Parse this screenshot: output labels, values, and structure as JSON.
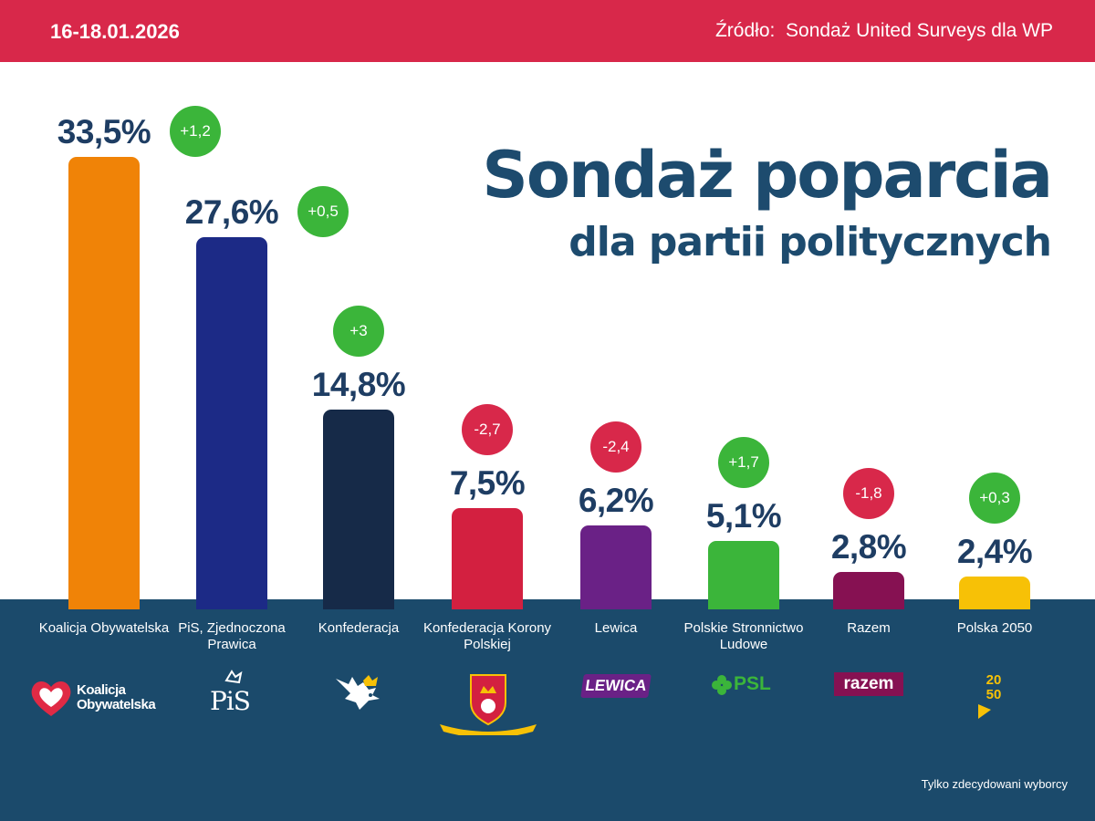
{
  "header": {
    "date": "16-18.01.2026",
    "source": "Źródło:  Sondaż United Surveys dla WP"
  },
  "title": {
    "main": "Sondaż poparcia",
    "sub": "dla partii politycznych"
  },
  "footnote": "Tylko zdecydowani wyborcy",
  "colors": {
    "header": "#d8284a",
    "title": "#1d4b6e",
    "bottom": "#1b4a6b",
    "value_text": "#1e3d63",
    "increase": "#3bb53a",
    "decrease": "#d8284a"
  },
  "logos": {
    "ko": "Koalicja\nObywatelska",
    "pis": "PiS",
    "lewica": "LEWICA",
    "psl": "PSL",
    "razem": "razem",
    "pl2050": "20 50"
  },
  "chart_data": {
    "type": "bar",
    "categories": [
      "Koalicja Obywatelska",
      "PiS, Zjednoczona Prawica",
      "Konfederacja",
      "Konfederacja Korony Polskiej",
      "Lewica",
      "Polskie Stronnictwo Ludowe",
      "Razem",
      "Polska 2050"
    ],
    "values": [
      33.5,
      27.6,
      14.8,
      7.5,
      6.2,
      5.1,
      2.8,
      2.4
    ],
    "value_labels": [
      "33,5%",
      "27,6%",
      "14,8%",
      "7,5%",
      "6,2%",
      "5,1%",
      "2,8%",
      "2,4%"
    ],
    "changes": [
      1.2,
      0.5,
      3,
      -2.7,
      -2.4,
      1.7,
      -1.8,
      0.3
    ],
    "change_labels": [
      "+1,2",
      "+0,5",
      "+3",
      "-2,7",
      "-2,4",
      "+1,7",
      "-1,8",
      "+0,3"
    ],
    "colors": [
      "#f08307",
      "#1c2a86",
      "#162a48",
      "#d32040",
      "#6a2186",
      "#3bb53a",
      "#861152",
      "#f7c106"
    ],
    "ylim": [
      0,
      35
    ]
  }
}
